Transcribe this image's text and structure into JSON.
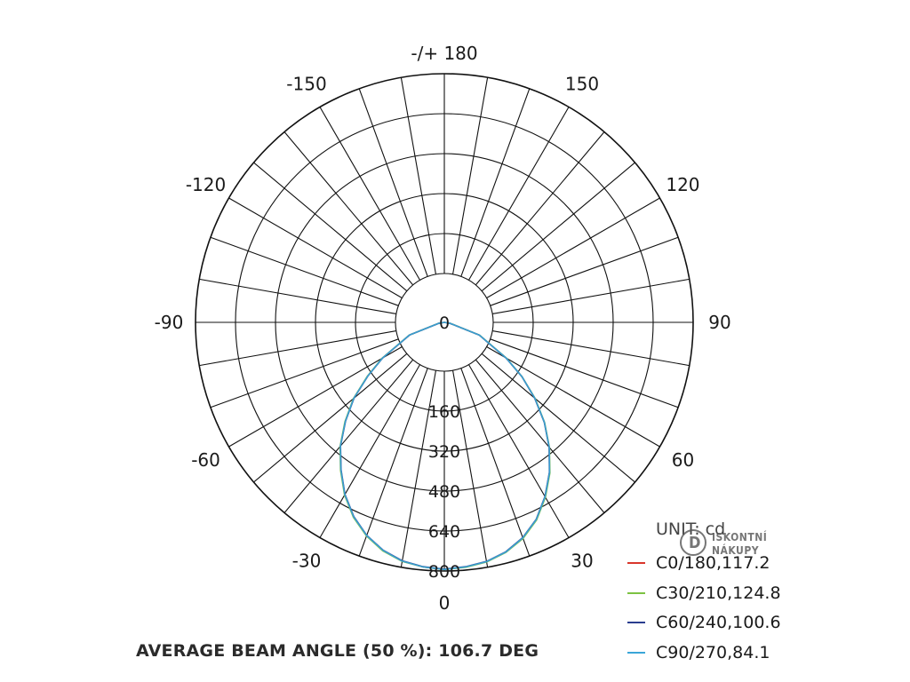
{
  "chart_data": {
    "type": "polar-line",
    "angle_labels": [
      "-/+ 180",
      "150",
      "120",
      "90",
      "60",
      "30",
      "0",
      "-30",
      "-60",
      "-90",
      "-120",
      "-150"
    ],
    "angle_values": [
      180,
      150,
      120,
      90,
      60,
      30,
      0,
      -30,
      -60,
      -90,
      -120,
      -150
    ],
    "radial_labels": [
      "0",
      "160",
      "320",
      "480",
      "640",
      "800"
    ],
    "radial_values": [
      0,
      160,
      320,
      480,
      640,
      800
    ],
    "rmax": 800,
    "unit_label": "UNIT: cd",
    "series": [
      {
        "name": "C0/180,117.2",
        "color": "#d9362b",
        "angles": [
          -180,
          -90,
          -80,
          -70,
          -60,
          -55,
          -50,
          -45,
          -40,
          -35,
          -30,
          -25,
          -20,
          -15,
          -10,
          -5,
          0,
          5,
          10,
          15,
          20,
          25,
          30,
          35,
          40,
          45,
          50,
          55,
          60,
          70,
          80,
          90,
          180
        ],
        "values": [
          0,
          0,
          20,
          120,
          230,
          300,
          380,
          450,
          520,
          580,
          640,
          690,
          730,
          760,
          780,
          790,
          795,
          790,
          782,
          765,
          738,
          700,
          648,
          590,
          525,
          455,
          380,
          305,
          230,
          120,
          20,
          0,
          0
        ]
      },
      {
        "name": "C30/210,124.8",
        "color": "#7cc242",
        "angles": [
          -180,
          -90,
          -80,
          -70,
          -60,
          -55,
          -50,
          -45,
          -40,
          -35,
          -30,
          -25,
          -20,
          -15,
          -10,
          -5,
          0,
          5,
          10,
          15,
          20,
          25,
          30,
          35,
          40,
          45,
          50,
          55,
          60,
          70,
          80,
          90,
          180
        ],
        "values": [
          0,
          0,
          20,
          120,
          232,
          302,
          382,
          452,
          522,
          582,
          642,
          692,
          732,
          762,
          781,
          790,
          795,
          791,
          783,
          766,
          740,
          702,
          650,
          592,
          526,
          456,
          381,
          305,
          231,
          121,
          20,
          0,
          0
        ]
      },
      {
        "name": "C60/240,100.6",
        "color": "#2a3d8f",
        "angles": [
          -180,
          -90,
          -80,
          -70,
          -60,
          -55,
          -50,
          -45,
          -40,
          -35,
          -30,
          -25,
          -20,
          -15,
          -10,
          -5,
          0,
          5,
          10,
          15,
          20,
          25,
          30,
          35,
          40,
          45,
          50,
          55,
          60,
          70,
          80,
          90,
          180
        ],
        "values": [
          0,
          0,
          18,
          118,
          229,
          299,
          379,
          449,
          519,
          579,
          639,
          689,
          729,
          759,
          779,
          789,
          794,
          789,
          781,
          764,
          737,
          699,
          647,
          589,
          524,
          454,
          379,
          304,
          229,
          119,
          18,
          0,
          0
        ]
      },
      {
        "name": "C90/270,84.1",
        "color": "#3aa6d8",
        "angles": [
          -180,
          -90,
          -80,
          -70,
          -60,
          -55,
          -50,
          -45,
          -40,
          -35,
          -30,
          -25,
          -20,
          -15,
          -10,
          -5,
          0,
          5,
          10,
          15,
          20,
          25,
          30,
          35,
          40,
          45,
          50,
          55,
          60,
          70,
          80,
          90,
          180
        ],
        "values": [
          0,
          0,
          20,
          120,
          230,
          300,
          380,
          450,
          520,
          580,
          640,
          690,
          730,
          760,
          780,
          790,
          795,
          790,
          782,
          765,
          738,
          700,
          648,
          590,
          525,
          455,
          380,
          305,
          230,
          120,
          20,
          0,
          0
        ]
      }
    ],
    "legend_position": "bottom-right",
    "grid": true
  },
  "footer": {
    "beam_angle_text": "AVERAGE BEAM ANGLE (50 %): 106.7 DEG"
  },
  "watermark": {
    "glyph": "D",
    "line1": "ISKONTNÍ",
    "line2": "NÁKUPY"
  }
}
